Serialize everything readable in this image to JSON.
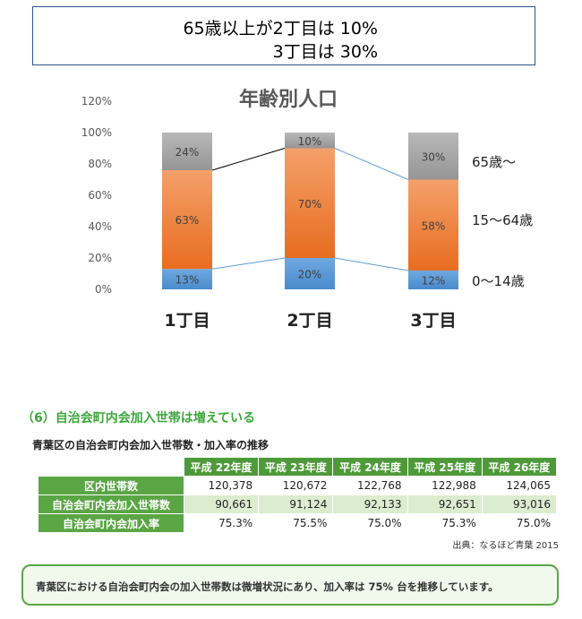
{
  "callout": {
    "line1": "65歳以上が2丁目は  10%",
    "line2": "3丁目は  30%"
  },
  "chart_data": {
    "type": "bar",
    "stacked": true,
    "title": "年齢別人口",
    "categories": [
      "1丁目",
      "2丁目",
      "3丁目"
    ],
    "series": [
      {
        "name": "0～14歳",
        "values": [
          13,
          20,
          12
        ],
        "labels": [
          "13%",
          "20%",
          "12%"
        ],
        "color": "#5b9bd5"
      },
      {
        "name": "15～64歳",
        "values": [
          63,
          70,
          58
        ],
        "labels": [
          "63%",
          "70%",
          "58%"
        ],
        "color": "#ed7d31"
      },
      {
        "name": "65歳～",
        "values": [
          24,
          10,
          30
        ],
        "labels": [
          "24%",
          "10%",
          "30%"
        ],
        "color": "#a5a5a5"
      }
    ],
    "yticks": [
      "0%",
      "20%",
      "40%",
      "60%",
      "80%",
      "100%",
      "120%"
    ],
    "ylim": [
      0,
      120
    ],
    "grid": false,
    "legend": "right"
  },
  "section": {
    "heading": "（6）自治会町内会加入世帯は増えている"
  },
  "table": {
    "title": "青葉区の自治会町内会加入世帯数・加入率の推移",
    "columns": [
      "平成 22年度",
      "平成 23年度",
      "平成 24年度",
      "平成 25年度",
      "平成 26年度"
    ],
    "rows": [
      {
        "label": "区内世帯数",
        "values": [
          "120,378",
          "120,672",
          "122,768",
          "122,988",
          "124,065"
        ]
      },
      {
        "label": "自治会町内会加入世帯数",
        "values": [
          "90,661",
          "91,124",
          "92,133",
          "92,651",
          "93,016"
        ]
      },
      {
        "label": "自治会町内会加入率",
        "values": [
          "75.3%",
          "75.5%",
          "75.0%",
          "75.3%",
          "75.0%"
        ]
      }
    ],
    "source": "出典：なるほど青葉 2015"
  },
  "summary": {
    "text": "青葉区における自治会町内会の加入世帯数は微増状況にあり、加入率は 75% 台を推移しています。"
  }
}
